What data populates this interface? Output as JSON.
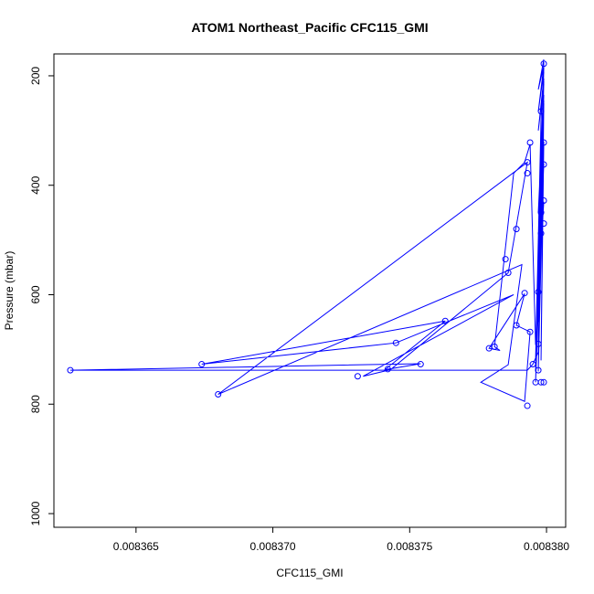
{
  "chart_data": {
    "type": "line",
    "title": "ATOM1 Northeast_Pacific CFC115_GMI",
    "xlabel": "CFC115_GMI",
    "ylabel": "Pressure (mbar)",
    "xlim": [
      0.008362,
      0.0083807
    ],
    "ylim": [
      1025,
      160
    ],
    "y_reversed": true,
    "x_ticks": [
      0.008365,
      0.00837,
      0.008375,
      0.00838
    ],
    "x_tick_labels": [
      "0.008365",
      "0.008370",
      "0.008375",
      "0.008380"
    ],
    "y_ticks": [
      200,
      400,
      600,
      800,
      1000
    ],
    "y_tick_labels": [
      "200",
      "400",
      "600",
      "800",
      "1000"
    ],
    "grid": false,
    "marker": "open-circle",
    "color": "#0000ff",
    "series": [
      {
        "x": [
          0.0083799,
          0.0083797,
          0.0083799,
          0.0083797,
          0.0083799,
          0.0083798,
          0.0083796,
          0.0083799,
          0.0083797,
          0.0083799,
          0.0083798,
          0.0083796,
          0.0083799,
          0.0083797,
          0.0083799,
          0.0083796,
          0.0083799,
          0.0083798,
          0.0083799,
          0.0083797,
          0.0083796,
          0.0083794,
          0.0083792,
          0.0083788,
          0.0083781,
          0.0083783,
          0.0083779,
          0.0083792,
          0.0083789,
          0.0083794,
          0.0083792,
          0.0083776,
          0.0083786,
          0.0083791,
          0.008368,
          0.0083793,
          0.0083786,
          0.0083743,
          0.0083733,
          0.0083788,
          0.0083745,
          0.0083674,
          0.0083763,
          0.0083741,
          0.0083754,
          0.0083626,
          0.0083793,
          0.0083795,
          0.0083797,
          0.0083798,
          0.0083799,
          0.0083797,
          0.0083799,
          0.0083798,
          0.0083799,
          0.0083797,
          0.0083799,
          0.0083797,
          0.0083799
        ],
        "y": [
          170,
          225,
          182,
          265,
          193,
          280,
          720,
          205,
          300,
          215,
          330,
          740,
          235,
          450,
          245,
          760,
          360,
          490,
          430,
          595,
          690,
          325,
          358,
          378,
          695,
          702,
          698,
          598,
          656,
          668,
          795,
          760,
          728,
          545,
          782,
          358,
          560,
          737,
          749,
          600,
          688,
          727,
          648,
          737,
          726,
          738,
          738,
          727,
          705,
          480,
          175,
          740,
          320,
          720,
          250,
          700,
          210,
          650,
          185
        ]
      }
    ],
    "points": {
      "x": [
        0.0083799,
        0.0083798,
        0.0083799,
        0.0083799,
        0.0083799,
        0.0083799,
        0.0083798,
        0.0083798,
        0.0083794,
        0.0083793,
        0.0083793,
        0.0083789,
        0.0083785,
        0.0083786,
        0.0083792,
        0.0083763,
        0.0083789,
        0.0083794,
        0.0083745,
        0.0083781,
        0.0083779,
        0.0083674,
        0.0083626,
        0.0083754,
        0.0083742,
        0.0083731,
        0.0083795,
        0.0083797,
        0.0083798,
        0.0083796,
        0.0083799,
        0.008368,
        0.0083793,
        0.0083797,
        0.0083797
      ],
      "y": [
        178,
        265,
        322,
        362,
        428,
        470,
        450,
        488,
        322,
        358,
        378,
        480,
        535,
        560,
        597,
        648,
        656,
        668,
        688,
        695,
        698,
        727,
        738,
        727,
        736,
        749,
        727,
        738,
        760,
        760,
        760,
        782,
        803,
        595,
        690
      ]
    }
  }
}
